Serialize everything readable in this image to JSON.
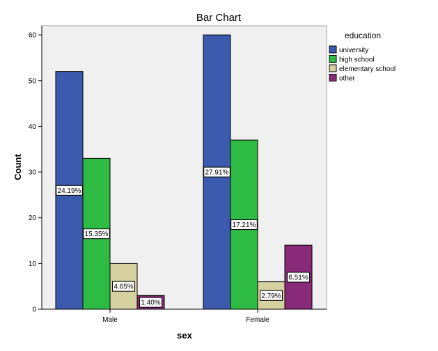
{
  "chart_data": {
    "type": "bar",
    "title": "Bar Chart",
    "xlabel": "sex",
    "ylabel": "Count",
    "ylim": [
      0,
      62
    ],
    "yticks": [
      0,
      10,
      20,
      30,
      40,
      50,
      60
    ],
    "categories": [
      "Male",
      "Female"
    ],
    "legend": {
      "title": "education",
      "position": "right"
    },
    "series": [
      {
        "name": "university",
        "color": "#3c5aad",
        "values": [
          52,
          60
        ],
        "labels": [
          "24.19%",
          "27.91%"
        ]
      },
      {
        "name": "high school",
        "color": "#2ebb44",
        "values": [
          33,
          37
        ],
        "labels": [
          "15.35%",
          "17.21%"
        ]
      },
      {
        "name": "elementary school",
        "color": "#d6d0a0",
        "values": [
          10,
          6
        ],
        "labels": [
          "4.65%",
          "2.79%"
        ]
      },
      {
        "name": "other",
        "color": "#892a79",
        "values": [
          3,
          14
        ],
        "labels": [
          "1.40%",
          "6.51%"
        ]
      }
    ],
    "grid": false,
    "plot_background": "#f0f0f0"
  }
}
